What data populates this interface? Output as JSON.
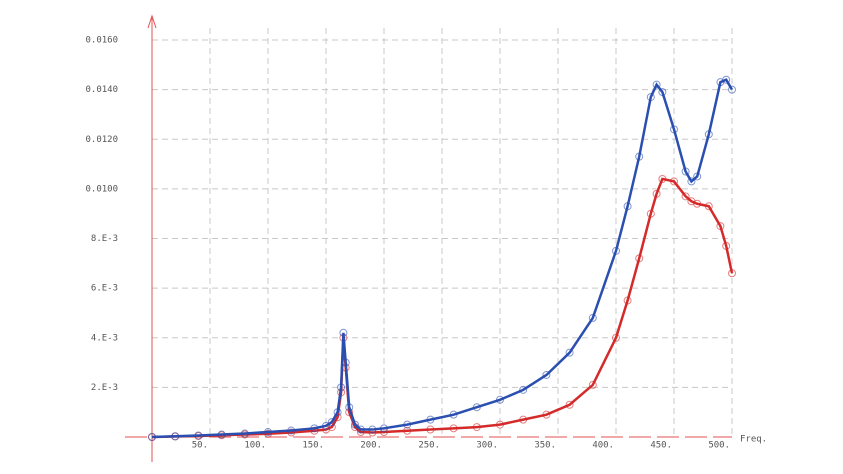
{
  "chart_data": {
    "type": "line",
    "x_label": "Freq.",
    "x": [
      0,
      20,
      40,
      60,
      80,
      100,
      120,
      140,
      150,
      155,
      160,
      163,
      165,
      167,
      170,
      175,
      180,
      190,
      200,
      220,
      240,
      260,
      280,
      300,
      320,
      340,
      360,
      380,
      400,
      410,
      420,
      430,
      435,
      440,
      450,
      460,
      465,
      470,
      480,
      490,
      495,
      500
    ],
    "series": [
      {
        "color": "#2a4fb0",
        "values": [
          0,
          3e-05,
          6e-05,
          0.0001,
          0.00014,
          0.0002,
          0.00026,
          0.00035,
          0.00045,
          0.0006,
          0.001,
          0.002,
          0.0042,
          0.003,
          0.0012,
          0.0005,
          0.0003,
          0.0003,
          0.00035,
          0.0005,
          0.0007,
          0.0009,
          0.0012,
          0.0015,
          0.0019,
          0.0025,
          0.0034,
          0.0048,
          0.0075,
          0.0093,
          0.0113,
          0.0137,
          0.0142,
          0.0139,
          0.0124,
          0.0107,
          0.0103,
          0.0105,
          0.0122,
          0.0143,
          0.0144,
          0.014
        ]
      },
      {
        "color": "#d42a2a",
        "values": [
          0,
          2e-05,
          4e-05,
          7e-05,
          0.0001,
          0.00013,
          0.00018,
          0.00025,
          0.0003,
          0.0004,
          0.0008,
          0.0018,
          0.004,
          0.0028,
          0.001,
          0.0004,
          0.0002,
          0.00018,
          0.0002,
          0.00025,
          0.0003,
          0.00035,
          0.0004,
          0.0005,
          0.0007,
          0.0009,
          0.0013,
          0.0021,
          0.004,
          0.0055,
          0.0072,
          0.009,
          0.0098,
          0.0104,
          0.0103,
          0.0097,
          0.0095,
          0.0094,
          0.0093,
          0.0085,
          0.0077,
          0.0066
        ]
      }
    ],
    "xlim": [
      0,
      500
    ],
    "ylim": [
      0,
      0.016
    ],
    "xticks": [
      {
        "value": 50,
        "label": "50."
      },
      {
        "value": 100,
        "label": "100."
      },
      {
        "value": 150,
        "label": "150."
      },
      {
        "value": 200,
        "label": "200."
      },
      {
        "value": 250,
        "label": "250."
      },
      {
        "value": 300,
        "label": "300."
      },
      {
        "value": 350,
        "label": "350."
      },
      {
        "value": 400,
        "label": "400."
      },
      {
        "value": 450,
        "label": "450."
      },
      {
        "value": 500,
        "label": "500."
      }
    ],
    "yticks": [
      {
        "value": 0.002,
        "label": "2.E-3"
      },
      {
        "value": 0.004,
        "label": "4.E-3"
      },
      {
        "value": 0.006,
        "label": "6.E-3"
      },
      {
        "value": 0.008,
        "label": "8.E-3"
      },
      {
        "value": 0.01,
        "label": "0.0100"
      },
      {
        "value": 0.012,
        "label": "0.0120"
      },
      {
        "value": 0.014,
        "label": "0.0140"
      },
      {
        "value": 0.016,
        "label": "0.0160"
      }
    ],
    "grid": true,
    "axis_color": "#e05050"
  }
}
